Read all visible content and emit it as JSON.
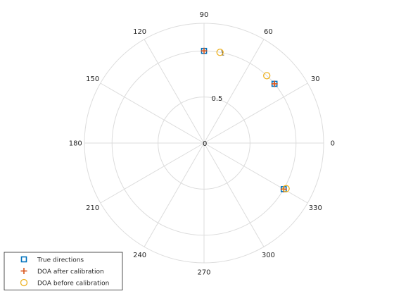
{
  "chart_data": {
    "type": "scatter",
    "projection": "polar",
    "angle_unit": "degrees",
    "r_range": [
      0,
      1.3
    ],
    "r_ticks": [
      {
        "value": 0,
        "label": "0"
      },
      {
        "value": 0.5,
        "label": "0.5"
      },
      {
        "value": 1,
        "label": "1"
      }
    ],
    "angle_ticks": [
      {
        "value": 0,
        "label": "0"
      },
      {
        "value": 30,
        "label": "30"
      },
      {
        "value": 60,
        "label": "60"
      },
      {
        "value": 90,
        "label": "90"
      },
      {
        "value": 120,
        "label": "120"
      },
      {
        "value": 150,
        "label": "150"
      },
      {
        "value": 180,
        "label": "180"
      },
      {
        "value": 210,
        "label": "210"
      },
      {
        "value": 240,
        "label": "240"
      },
      {
        "value": 270,
        "label": "270"
      },
      {
        "value": 300,
        "label": "300"
      },
      {
        "value": 330,
        "label": "330"
      }
    ],
    "grid": true,
    "legend_position": "bottom-left",
    "series": [
      {
        "name": "True directions",
        "marker": "square",
        "color": "#0072BD",
        "points": [
          {
            "theta": 90,
            "r": 1.0
          },
          {
            "theta": 40,
            "r": 1.0
          },
          {
            "theta": -30,
            "r": 1.0
          }
        ]
      },
      {
        "name": "DOA after calibration",
        "marker": "plus",
        "color": "#D95319",
        "points": [
          {
            "theta": 90,
            "r": 1.0
          },
          {
            "theta": 40,
            "r": 1.0
          },
          {
            "theta": -30,
            "r": 1.0
          }
        ]
      },
      {
        "name": "DOA before calibration",
        "marker": "circle",
        "color": "#EDB120",
        "points": [
          {
            "theta": 80,
            "r": 1.0
          },
          {
            "theta": 47,
            "r": 1.0
          },
          {
            "theta": -29,
            "r": 1.02
          }
        ]
      }
    ]
  }
}
